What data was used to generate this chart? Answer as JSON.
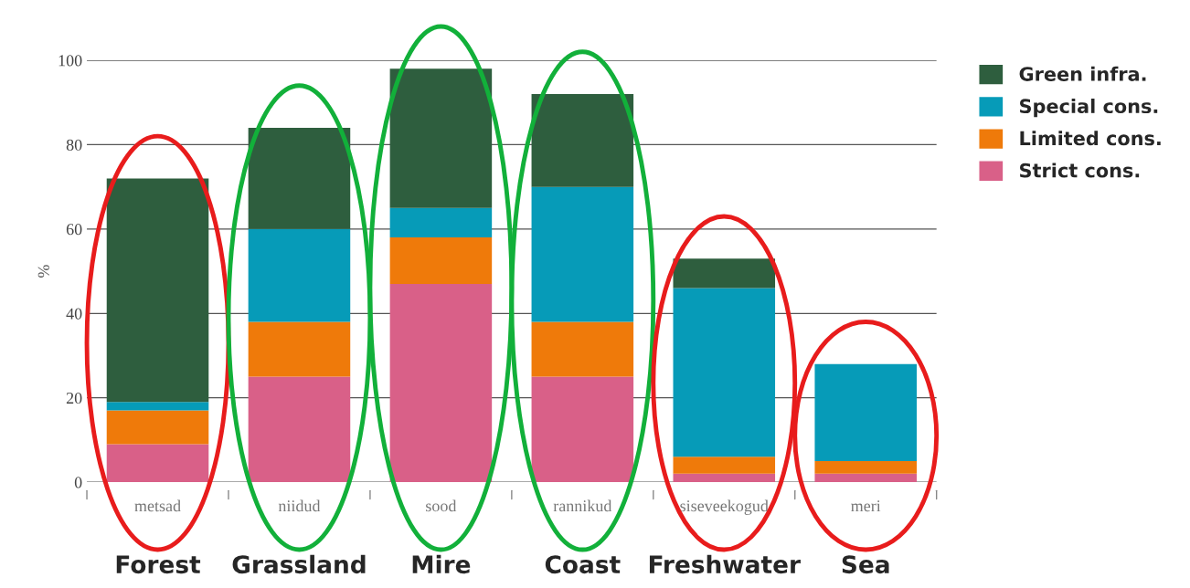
{
  "chart_data": {
    "type": "bar",
    "stacked": true,
    "ylabel": "%",
    "categories": [
      "metsad",
      "niidud",
      "sood",
      "rannikud",
      "siseveekogud",
      "meri"
    ],
    "series": [
      {
        "name": "Strict cons.",
        "color": "#d96088",
        "values": [
          9,
          25,
          47,
          25,
          2,
          2
        ]
      },
      {
        "name": "Limited cons.",
        "color": "#ef7a0a",
        "values": [
          8,
          13,
          11,
          13,
          4,
          3
        ]
      },
      {
        "name": "Special cons.",
        "color": "#069bb8",
        "values": [
          2,
          22,
          7,
          32,
          40,
          23
        ]
      },
      {
        "name": "Green infra.",
        "color": "#2e5e3e",
        "values": [
          53,
          24,
          33,
          22,
          7,
          0
        ]
      }
    ],
    "ylim": [
      0,
      100
    ],
    "yticks": [
      0,
      20,
      40,
      60,
      80,
      100
    ],
    "grid": "y",
    "legend": "top right",
    "annotations": [
      "Forest",
      "Grassland",
      "Mire",
      "Coast",
      "Freshwater",
      "Sea"
    ]
  }
}
